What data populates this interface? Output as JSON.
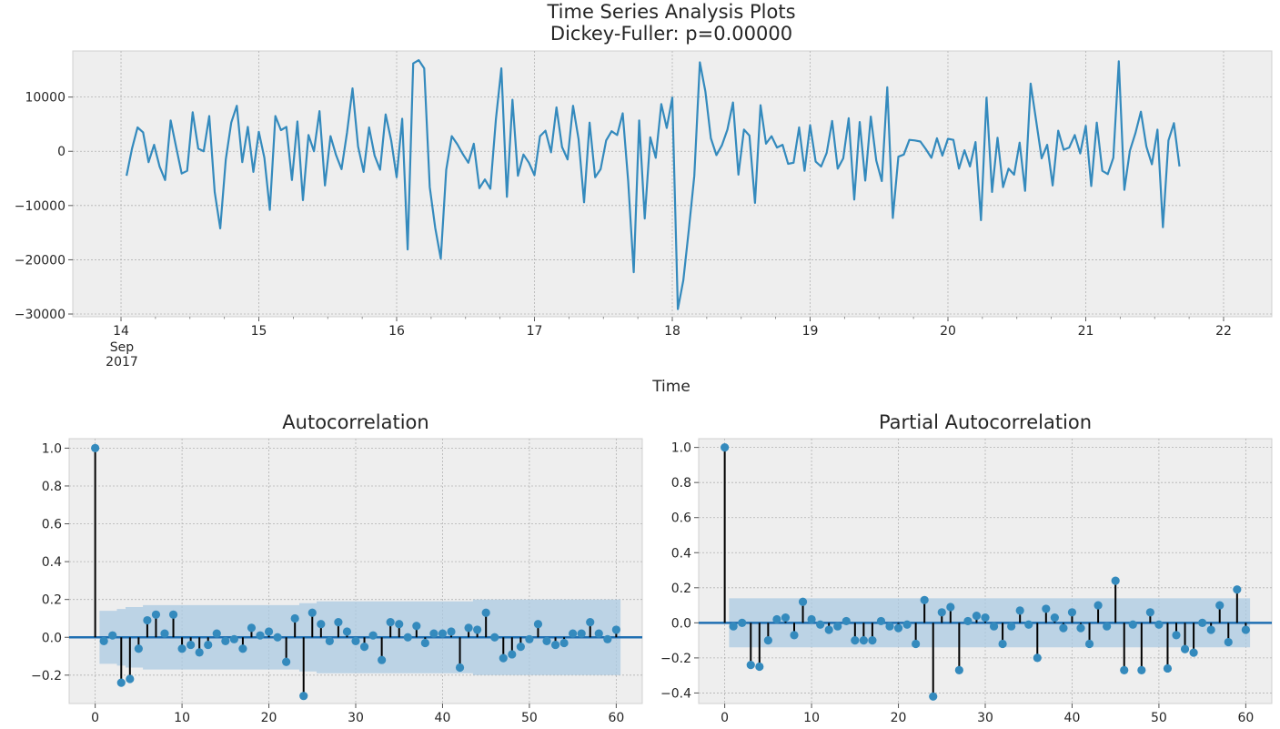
{
  "figure": {
    "title_line1": "Time Series Analysis Plots",
    "title_line2": "Dickey-Fuller: p=0.00000"
  },
  "colors": {
    "background": "#eeeeee",
    "grid": "#b2b2b2",
    "line": "#348abd",
    "stem": "#000000",
    "confidence_band": "#abc9e2",
    "baseline": "#1f6fb2"
  },
  "chart_data": [
    {
      "type": "line",
      "title": "",
      "xlabel": "Time",
      "ylabel": "",
      "x_ticks": [
        "14",
        "15",
        "16",
        "17",
        "18",
        "19",
        "20",
        "21",
        "22"
      ],
      "x_tick_sub": [
        "Sep",
        "2017"
      ],
      "xlim": [
        13.65,
        22.35
      ],
      "ylim": [
        -30500,
        18500
      ],
      "y_ticks": [
        10000,
        0,
        -10000,
        -20000,
        -30000
      ],
      "y_tick_labels": [
        "10000",
        "0",
        "−10000",
        "−20000",
        "−30000"
      ],
      "grid": true,
      "series": [
        {
          "x_start": 14.04,
          "x_step": 0.04,
          "values": [
            -4500,
            500,
            4400,
            3500,
            -2000,
            1200,
            -2800,
            -5300,
            5700,
            800,
            -4100,
            -3600,
            7200,
            500,
            0,
            6500,
            -7500,
            -14200,
            -1500,
            5300,
            8400,
            -2000,
            4500,
            -3800,
            3600,
            -1200,
            -10800,
            6500,
            3900,
            4500,
            -5300,
            5500,
            -9000,
            3000,
            0,
            7400,
            -6300,
            2800,
            -700,
            -3300,
            3500,
            11600,
            900,
            -3800,
            4400,
            -800,
            -3400,
            6800,
            2000,
            -4800,
            6000,
            -18100,
            16200,
            16800,
            15300,
            -6600,
            -14100,
            -19800,
            -3400,
            2800,
            1300,
            -500,
            -2100,
            1400,
            -6800,
            -5200,
            -6900,
            5900,
            15300,
            -8400,
            9500,
            -4500,
            -600,
            -2100,
            -4400,
            2800,
            3800,
            -200,
            8100,
            800,
            -1500,
            8400,
            2200,
            -9400,
            5300,
            -4800,
            -3300,
            2000,
            3700,
            3000,
            7000,
            -5500,
            -22300,
            5700,
            -12400,
            2600,
            -1200,
            8700,
            4300,
            9900,
            -29100,
            -23800,
            -14400,
            -4500,
            16400,
            11000,
            2400,
            -700,
            1100,
            4000,
            9000,
            -4300,
            4000,
            2900,
            -9500,
            8500,
            1400,
            2800,
            700,
            1200,
            -2300,
            -2100,
            4400,
            -3600,
            4800,
            -1900,
            -2800,
            -300,
            5600,
            -3200,
            -1300,
            6100,
            -8900,
            5400,
            -5400,
            6400,
            -1700,
            -5500,
            11800,
            -12300,
            -1000,
            -600,
            2100,
            2000,
            1800,
            400,
            -1200,
            2400,
            -800,
            2300,
            2100,
            -3200,
            200,
            -2800,
            1700,
            -12700,
            9900,
            -7500,
            2500,
            -6600,
            -3200,
            -4300,
            1600,
            -7300,
            12500,
            5700,
            -1300,
            1200,
            -6300,
            3800,
            300,
            700,
            3000,
            -400,
            4700,
            -6400,
            5300,
            -3600,
            -4200,
            -1200,
            16600,
            -7100,
            100,
            3300,
            7300,
            900,
            -2400,
            4000,
            -14000,
            2000,
            5200,
            -2800
          ]
        }
      ]
    },
    {
      "type": "stem",
      "title": "Autocorrelation",
      "xlabel": "",
      "ylabel": "",
      "xlim": [
        -3,
        63
      ],
      "ylim": [
        -0.35,
        1.05
      ],
      "x_ticks": [
        0,
        10,
        20,
        30,
        40,
        50,
        60
      ],
      "y_ticks": [
        1.0,
        0.8,
        0.6,
        0.4,
        0.2,
        0.0,
        -0.2
      ],
      "y_tick_labels": [
        "1.0",
        "0.8",
        "0.6",
        "0.4",
        "0.2",
        "0.0",
        "−0.2"
      ],
      "grid": true,
      "lags": [
        0,
        1,
        2,
        3,
        4,
        5,
        6,
        7,
        8,
        9,
        10,
        11,
        12,
        13,
        14,
        15,
        16,
        17,
        18,
        19,
        20,
        21,
        22,
        23,
        24,
        25,
        26,
        27,
        28,
        29,
        30,
        31,
        32,
        33,
        34,
        35,
        36,
        37,
        38,
        39,
        40,
        41,
        42,
        43,
        44,
        45,
        46,
        47,
        48,
        49,
        50,
        51,
        52,
        53,
        54,
        55,
        56,
        57,
        58,
        59,
        60
      ],
      "values": [
        1.0,
        -0.02,
        0.01,
        -0.24,
        -0.22,
        -0.06,
        0.09,
        0.12,
        0.02,
        0.12,
        -0.06,
        -0.04,
        -0.08,
        -0.04,
        0.02,
        -0.02,
        -0.01,
        -0.06,
        0.05,
        0.01,
        0.03,
        0.0,
        -0.13,
        0.1,
        -0.31,
        0.13,
        0.07,
        -0.02,
        0.08,
        0.03,
        -0.02,
        -0.05,
        0.01,
        -0.12,
        0.08,
        0.07,
        0.0,
        0.06,
        -0.03,
        0.02,
        0.02,
        0.03,
        -0.16,
        0.05,
        0.04,
        0.13,
        0.0,
        -0.11,
        -0.09,
        -0.05,
        -0.01,
        0.07,
        -0.02,
        -0.04,
        -0.03,
        0.02,
        0.02,
        0.08,
        0.02,
        -0.01,
        0.04
      ],
      "confidence_upper": [
        0.14,
        0.14,
        0.15,
        0.16,
        0.16,
        0.17,
        0.17,
        0.17,
        0.17,
        0.17,
        0.17,
        0.17,
        0.17,
        0.17,
        0.17,
        0.17,
        0.17,
        0.17,
        0.17,
        0.17,
        0.17,
        0.17,
        0.17,
        0.18,
        0.18,
        0.19,
        0.19,
        0.19,
        0.19,
        0.19,
        0.19,
        0.19,
        0.19,
        0.19,
        0.19,
        0.19,
        0.19,
        0.19,
        0.19,
        0.19,
        0.19,
        0.19,
        0.19,
        0.2,
        0.2,
        0.2,
        0.2,
        0.2,
        0.2,
        0.2,
        0.2,
        0.2,
        0.2,
        0.2,
        0.2,
        0.2,
        0.2,
        0.2,
        0.2,
        0.2
      ]
    },
    {
      "type": "stem",
      "title": "Partial Autocorrelation",
      "xlabel": "",
      "ylabel": "",
      "xlim": [
        -3,
        63
      ],
      "ylim": [
        -0.46,
        1.05
      ],
      "x_ticks": [
        0,
        10,
        20,
        30,
        40,
        50,
        60
      ],
      "y_ticks": [
        1.0,
        0.8,
        0.6,
        0.4,
        0.2,
        0.0,
        -0.2,
        -0.4
      ],
      "y_tick_labels": [
        "1.0",
        "0.8",
        "0.6",
        "0.4",
        "0.2",
        "0.0",
        "−0.2",
        "−0.4"
      ],
      "grid": true,
      "lags": [
        0,
        1,
        2,
        3,
        4,
        5,
        6,
        7,
        8,
        9,
        10,
        11,
        12,
        13,
        14,
        15,
        16,
        17,
        18,
        19,
        20,
        21,
        22,
        23,
        24,
        25,
        26,
        27,
        28,
        29,
        30,
        31,
        32,
        33,
        34,
        35,
        36,
        37,
        38,
        39,
        40,
        41,
        42,
        43,
        44,
        45,
        46,
        47,
        48,
        49,
        50,
        51,
        52,
        53,
        54,
        55,
        56,
        57,
        58,
        59,
        60
      ],
      "values": [
        1.0,
        -0.02,
        0.0,
        -0.24,
        -0.25,
        -0.1,
        0.02,
        0.03,
        -0.07,
        0.12,
        0.02,
        -0.01,
        -0.04,
        -0.02,
        0.01,
        -0.1,
        -0.1,
        -0.1,
        0.01,
        -0.02,
        -0.03,
        -0.01,
        -0.12,
        0.13,
        -0.42,
        0.06,
        0.09,
        -0.27,
        0.01,
        0.04,
        0.03,
        -0.02,
        -0.12,
        -0.02,
        0.07,
        -0.01,
        -0.2,
        0.08,
        0.03,
        -0.03,
        0.06,
        -0.03,
        -0.12,
        0.1,
        -0.02,
        0.24,
        -0.27,
        -0.01,
        -0.27,
        0.06,
        -0.01,
        -0.26,
        -0.07,
        -0.15,
        -0.17,
        0.0,
        -0.04,
        0.1,
        -0.11,
        0.19,
        -0.04
      ],
      "confidence_upper": [
        0.14,
        0.14,
        0.14,
        0.14,
        0.14,
        0.14,
        0.14,
        0.14,
        0.14,
        0.14,
        0.14,
        0.14,
        0.14,
        0.14,
        0.14,
        0.14,
        0.14,
        0.14,
        0.14,
        0.14,
        0.14,
        0.14,
        0.14,
        0.14,
        0.14,
        0.14,
        0.14,
        0.14,
        0.14,
        0.14,
        0.14,
        0.14,
        0.14,
        0.14,
        0.14,
        0.14,
        0.14,
        0.14,
        0.14,
        0.14,
        0.14,
        0.14,
        0.14,
        0.14,
        0.14,
        0.14,
        0.14,
        0.14,
        0.14,
        0.14,
        0.14,
        0.14,
        0.14,
        0.14,
        0.14,
        0.14,
        0.14,
        0.14,
        0.14,
        0.14
      ]
    }
  ]
}
